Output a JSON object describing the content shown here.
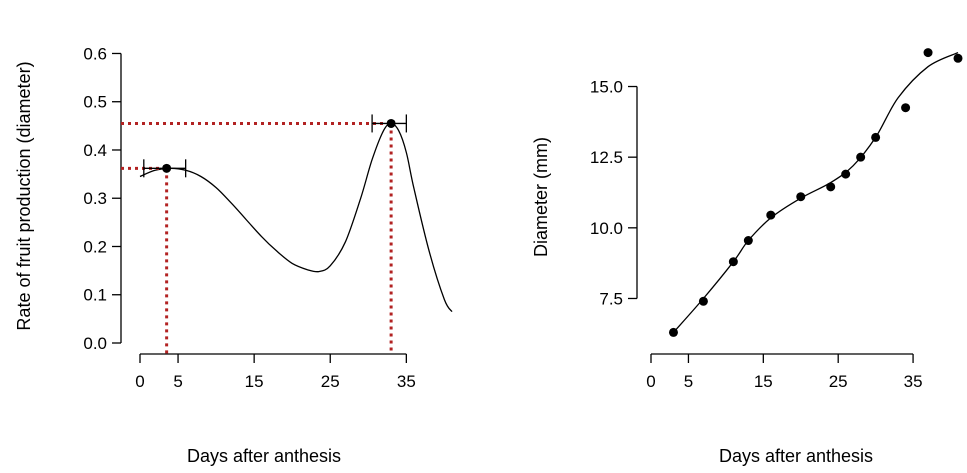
{
  "colors": {
    "ink": "#000000",
    "reference_line": "#b22222",
    "background": "#ffffff"
  },
  "chart_data": [
    {
      "type": "line",
      "title": "",
      "xlabel": "Days after anthesis",
      "ylabel": "Rate of fruit production (diameter)",
      "xlim": [
        0,
        41
      ],
      "ylim": [
        0,
        0.63
      ],
      "xticks": [
        0,
        5,
        15,
        25,
        35
      ],
      "xtick_labels": [
        "0",
        "5",
        "15",
        "25",
        "35"
      ],
      "yticks": [
        0.0,
        0.1,
        0.2,
        0.3,
        0.4,
        0.5,
        0.6
      ],
      "ytick_labels": [
        "0.0",
        "0.1",
        "0.2",
        "0.3",
        "0.4",
        "0.5",
        "0.6"
      ],
      "grid": false,
      "curve": {
        "x": [
          0,
          2,
          4,
          6,
          8,
          10,
          12,
          14,
          16,
          18,
          20,
          22,
          23.5,
          25,
          27,
          29,
          30.5,
          32,
          33,
          34,
          35,
          36,
          38,
          40,
          41
        ],
        "y": [
          0.345,
          0.358,
          0.362,
          0.358,
          0.345,
          0.322,
          0.29,
          0.255,
          0.22,
          0.19,
          0.165,
          0.152,
          0.148,
          0.16,
          0.21,
          0.3,
          0.38,
          0.44,
          0.455,
          0.44,
          0.395,
          0.32,
          0.19,
          0.09,
          0.065
        ]
      },
      "peaks": [
        {
          "x": 3.5,
          "y": 0.362,
          "x_err_low": 0.5,
          "x_err_high": 6
        },
        {
          "x": 33,
          "y": 0.455,
          "x_err_low": 30.5,
          "x_err_high": 35
        }
      ]
    },
    {
      "type": "scatter",
      "title": "",
      "xlabel": "Days after anthesis",
      "ylabel": "Diameter (mm)",
      "xlim": [
        0,
        41
      ],
      "ylim": [
        5.5,
        17
      ],
      "xticks": [
        0,
        5,
        15,
        25,
        35
      ],
      "xtick_labels": [
        "0",
        "5",
        "15",
        "25",
        "35"
      ],
      "yticks": [
        7.5,
        10.0,
        12.5,
        15.0
      ],
      "ytick_labels": [
        "7.5",
        "10.0",
        "12.5",
        "15.0"
      ],
      "grid": false,
      "points": {
        "x": [
          3,
          7,
          11,
          13,
          16,
          20,
          24,
          26,
          28,
          30,
          34,
          37,
          41
        ],
        "y": [
          6.3,
          7.4,
          8.8,
          9.55,
          10.45,
          11.1,
          11.45,
          11.9,
          12.5,
          13.2,
          14.25,
          16.2,
          16.0
        ]
      },
      "fit_line": {
        "x": [
          3,
          7,
          11,
          13,
          16,
          20,
          24,
          27,
          30,
          33,
          37,
          41
        ],
        "y": [
          6.3,
          7.5,
          8.8,
          9.55,
          10.35,
          11.05,
          11.6,
          12.2,
          13.2,
          14.6,
          15.7,
          16.2
        ]
      }
    }
  ]
}
